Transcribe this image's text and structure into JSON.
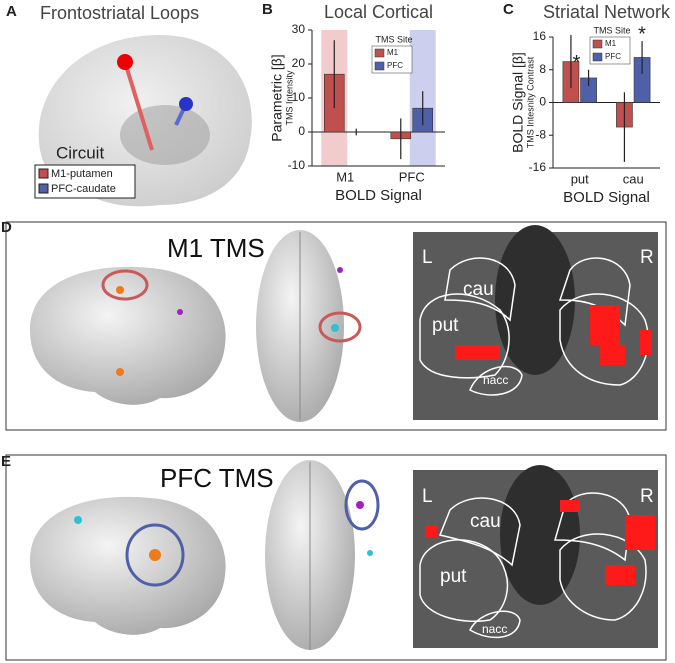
{
  "panel_a": {
    "label": "A",
    "title": "Frontostriatal Loops",
    "legend_title": "Circuit",
    "legend": [
      {
        "name": "M1-putamen",
        "color": "#c0504d"
      },
      {
        "name": "PFC-caudate",
        "color": "#4f5fa8"
      }
    ]
  },
  "chart_data": [
    {
      "type": "bar",
      "panel_label": "B",
      "title": "Local Cortical",
      "y_label": "Parametric [β]",
      "y_sublabel": "TMS Intensity",
      "x_label": "BOLD Signal",
      "legend_title": "TMS Site",
      "categories": [
        "M1",
        "PFC"
      ],
      "series": [
        {
          "name": "M1",
          "color": "#c0504d",
          "values": [
            17,
            -2
          ],
          "errors": [
            10,
            6
          ]
        },
        {
          "name": "PFC",
          "color": "#4f5fa8",
          "values": [
            0,
            7
          ],
          "errors": [
            1,
            5
          ]
        }
      ],
      "ylim": [
        -10,
        30
      ],
      "yticks": [
        -10,
        0,
        10,
        20,
        30
      ]
    },
    {
      "type": "bar",
      "panel_label": "C",
      "title": "Striatal Network",
      "y_label": "BOLD Signal [β]",
      "y_sublabel": "TMS Intesnity Contrast",
      "x_label": "BOLD Signal",
      "legend_title": "TMS Site",
      "categories": [
        "put",
        "cau"
      ],
      "series": [
        {
          "name": "M1",
          "color": "#c0504d",
          "values": [
            10,
            -6
          ],
          "errors": [
            6.5,
            8.5
          ]
        },
        {
          "name": "PFC",
          "color": "#4f5fa8",
          "values": [
            6,
            11
          ],
          "errors": [
            2,
            4
          ],
          "annotations": [
            "*",
            "*"
          ]
        }
      ],
      "ylim": [
        -16,
        16
      ],
      "yticks": [
        -16,
        -8,
        0,
        8,
        16
      ]
    }
  ],
  "panel_d": {
    "label": "D",
    "title": "M1 TMS",
    "slice_labels": {
      "left": "L",
      "right": "R",
      "caudate": "cau",
      "putamen": "put",
      "accumbens": "nacc"
    }
  },
  "panel_e": {
    "label": "E",
    "title": "PFC TMS",
    "slice_labels": {
      "left": "L",
      "right": "R",
      "caudate": "cau",
      "putamen": "put",
      "accumbens": "nacc"
    }
  }
}
